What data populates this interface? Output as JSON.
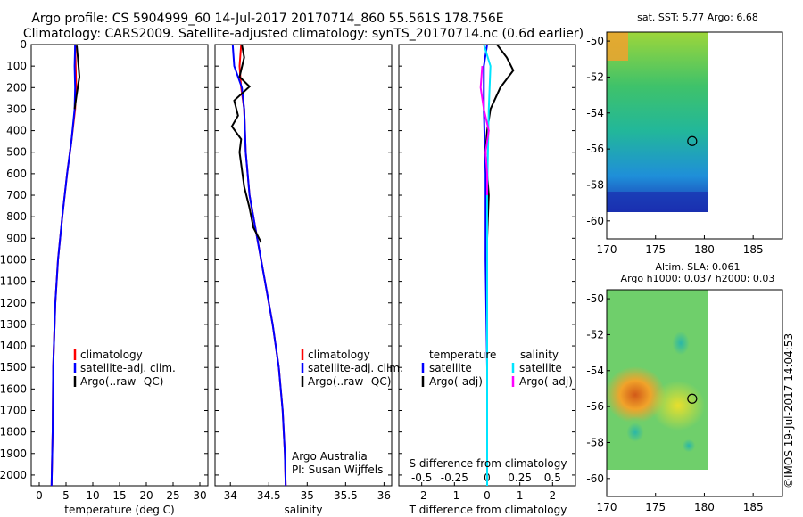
{
  "header": {
    "line1": "Argo profile: CS 5904999_60 14-Jul-2017 20170714_860 55.561S 178.756E",
    "line2": "Climatology: CARS2009. Satellite-adjusted climatology: synTS_20170714.nc (0.6d earlier)"
  },
  "colors": {
    "climatology": "#ff0000",
    "satellite": "#0000ff",
    "argo": "#000000",
    "satellite_s": "#00e5ff",
    "argo_s": "#ff00ff"
  },
  "legend": {
    "climatology": "climatology",
    "satellite_adj": "satellite-adj. clim.",
    "argo_raw": "Argo(..raw -QC)",
    "temperature_heading": "temperature",
    "salinity_heading": "salinity",
    "satellite": "satellite",
    "argo_adj": "Argo(-adj)"
  },
  "annotation": {
    "line1": "Argo Australia",
    "line2": "PI: Susan Wijffels"
  },
  "timestamp": "©IMOS 19-Jul-2017 14:04:53",
  "chart_data": [
    {
      "name": "temperature",
      "type": "line",
      "xlabel": "temperature (deg C)",
      "ylabel": "",
      "xlim": [
        -1.5,
        31.5
      ],
      "ylim": [
        2050,
        0
      ],
      "xticks": [
        0,
        5,
        10,
        15,
        20,
        25,
        30
      ],
      "yticks": [
        0,
        100,
        200,
        300,
        400,
        500,
        600,
        700,
        800,
        900,
        1000,
        1100,
        1200,
        1300,
        1400,
        1500,
        1600,
        1700,
        1800,
        1900,
        2000
      ],
      "series": [
        {
          "name": "climatology",
          "color": "#ff0000",
          "x": [
            6.7,
            6.8,
            6.9,
            6.7,
            6.0,
            5.2,
            4.3,
            3.5,
            3.0,
            2.6,
            2.5,
            2.3
          ],
          "y": [
            0,
            100,
            200,
            300,
            450,
            600,
            800,
            1000,
            1200,
            1500,
            1800,
            2050
          ]
        },
        {
          "name": "satellite-adj. clim.",
          "color": "#0000ff",
          "x": [
            6.7,
            6.6,
            6.7,
            6.6,
            6.0,
            5.2,
            4.3,
            3.5,
            3.0,
            2.6,
            2.5,
            2.3
          ],
          "y": [
            0,
            100,
            200,
            300,
            450,
            600,
            800,
            1000,
            1200,
            1500,
            1800,
            2050
          ]
        },
        {
          "name": "Argo(..raw -QC)",
          "color": "#000000",
          "x": [
            7.0,
            7.2,
            7.5,
            7.0,
            6.6
          ],
          "y": [
            5,
            60,
            150,
            230,
            300
          ]
        }
      ]
    },
    {
      "name": "salinity",
      "type": "line",
      "xlabel": "salinity",
      "xlim": [
        33.8,
        36.1
      ],
      "ylim": [
        2050,
        0
      ],
      "xticks": [
        34,
        34.5,
        35,
        35.5,
        36
      ],
      "series": [
        {
          "name": "climatology",
          "color": "#ff0000",
          "x": [
            34.14,
            34.12,
            34.14,
            34.18,
            34.2,
            34.25,
            34.35,
            34.45,
            34.55,
            34.63,
            34.68,
            34.71,
            34.72
          ],
          "y": [
            0,
            100,
            200,
            300,
            500,
            700,
            900,
            1100,
            1300,
            1500,
            1700,
            1900,
            2050
          ]
        },
        {
          "name": "satellite-adj. clim.",
          "color": "#0000ff",
          "x": [
            34.03,
            34.05,
            34.15,
            34.18,
            34.2,
            34.25,
            34.35,
            34.45,
            34.55,
            34.63,
            34.68,
            34.71,
            34.72
          ],
          "y": [
            0,
            100,
            200,
            300,
            500,
            700,
            900,
            1100,
            1300,
            1500,
            1700,
            1900,
            2050
          ]
        },
        {
          "name": "Argo(..raw -QC)",
          "color": "#000000",
          "x": [
            34.15,
            34.18,
            34.12,
            34.25,
            34.05,
            34.1,
            34.02,
            34.14,
            34.12,
            34.15,
            34.18,
            34.25,
            34.3,
            34.4
          ],
          "y": [
            0,
            60,
            150,
            195,
            260,
            330,
            380,
            440,
            500,
            580,
            660,
            760,
            850,
            920
          ]
        }
      ]
    },
    {
      "name": "difference",
      "type": "line",
      "xlabel": "T difference from climatology",
      "xlabel_top": "S difference from climatology",
      "xlim": [
        -2.7,
        2.7
      ],
      "ylim": [
        2050,
        0
      ],
      "xticks": [
        -2,
        -1,
        0,
        1,
        2
      ],
      "sticks": [
        -0.5,
        -0.25,
        0,
        0.25,
        0.5
      ],
      "series": [
        {
          "name": "temperature satellite",
          "color": "#0000ff",
          "x": [
            0.0,
            -0.1,
            -0.1,
            -0.05,
            -0.05,
            0.0,
            0.0
          ],
          "y": [
            0,
            100,
            300,
            600,
            1000,
            1500,
            2050
          ]
        },
        {
          "name": "temperature Argo(-adj)",
          "color": "#000000",
          "x": [
            0.3,
            0.6,
            0.8,
            0.4,
            0.1,
            0.0,
            -0.05,
            0.05,
            0.0
          ],
          "y": [
            0,
            60,
            120,
            200,
            300,
            400,
            500,
            700,
            900
          ]
        },
        {
          "name": "salinity satellite",
          "color": "#00e5ff",
          "x": [
            -0.1,
            0.1,
            0.05,
            0.0,
            0.0,
            0.0
          ],
          "y": [
            0,
            100,
            300,
            700,
            1200,
            2050
          ]
        },
        {
          "name": "salinity Argo(-adj)",
          "color": "#ff00ff",
          "x": [
            -0.15,
            -0.2,
            -0.1,
            0.05,
            -0.05,
            0.0,
            0.0
          ],
          "y": [
            100,
            200,
            300,
            400,
            500,
            600,
            700
          ]
        }
      ]
    },
    {
      "name": "sst_map",
      "type": "heatmap",
      "title": "sat. SST: 5.77 Argo: 6.68",
      "xlim": [
        170,
        188
      ],
      "ylim": [
        -61,
        -49.5
      ],
      "xticks": [
        170,
        175,
        180,
        185
      ],
      "yticks": [
        -50,
        -52,
        -54,
        -56,
        -58,
        -60
      ],
      "float_position": [
        178.756,
        -55.561
      ]
    },
    {
      "name": "sla_map",
      "type": "heatmap",
      "title": "Altim. SLA: 0.061",
      "subtitle": "Argo h1000: 0.037 h2000: 0.03",
      "xlim": [
        170,
        188
      ],
      "ylim": [
        -61,
        -49.5
      ],
      "xticks": [
        170,
        175,
        180,
        185
      ],
      "yticks": [
        -50,
        -52,
        -54,
        -56,
        -58,
        -60
      ],
      "float_position": [
        178.756,
        -55.561
      ]
    }
  ]
}
